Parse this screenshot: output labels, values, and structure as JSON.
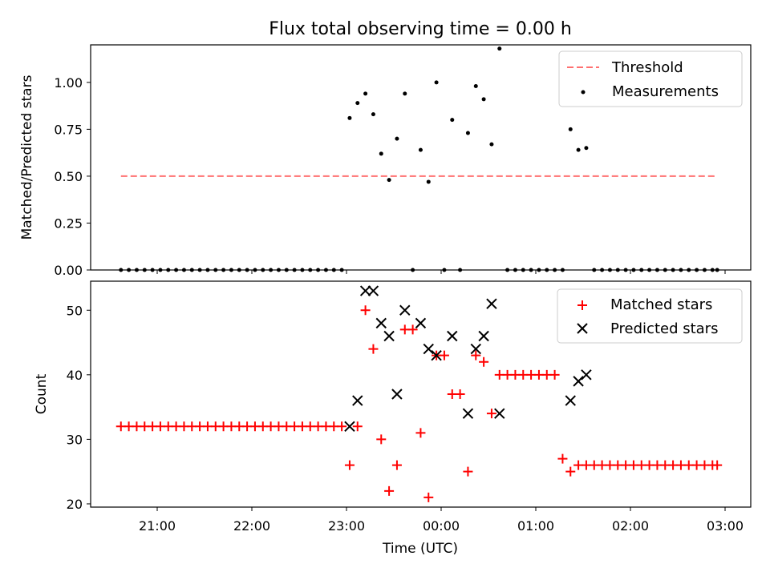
{
  "title": "Flux total observing time = 0.00 h",
  "chart_data": [
    {
      "type": "scatter",
      "ylabel": "Matched/Predicted stars",
      "ylim": [
        0,
        1.2
      ],
      "y_ticks": [
        0.0,
        0.25,
        0.5,
        0.75,
        1.0
      ],
      "y_tick_labels": [
        "0.00",
        "0.25",
        "0.50",
        "0.75",
        "1.00"
      ],
      "legend": {
        "position": "top-right",
        "entries": [
          "Threshold",
          "Measurements"
        ]
      },
      "threshold": {
        "name": "Threshold",
        "y": 0.5,
        "x_start": "20:37",
        "x_end": "02:55",
        "color": "#ff7070"
      },
      "series": [
        {
          "name": "Measurements",
          "color": "#000000",
          "x": [
            "20:37",
            "20:42",
            "20:47",
            "20:52",
            "20:57",
            "21:02",
            "21:07",
            "21:12",
            "21:17",
            "21:22",
            "21:27",
            "21:32",
            "21:37",
            "21:42",
            "21:47",
            "21:52",
            "21:57",
            "22:02",
            "22:07",
            "22:12",
            "22:17",
            "22:22",
            "22:27",
            "22:32",
            "22:37",
            "22:42",
            "22:47",
            "22:52",
            "22:57",
            "23:02",
            "23:07",
            "23:12",
            "23:17",
            "23:22",
            "23:27",
            "23:32",
            "23:37",
            "23:42",
            "23:47",
            "23:52",
            "23:57",
            "00:02",
            "00:07",
            "00:12",
            "00:17",
            "00:22",
            "00:27",
            "00:32",
            "00:37",
            "00:42",
            "00:47",
            "00:52",
            "00:57",
            "01:02",
            "01:07",
            "01:12",
            "01:17",
            "01:22",
            "01:27",
            "01:32",
            "01:37",
            "01:42",
            "01:47",
            "01:52",
            "01:57",
            "02:02",
            "02:07",
            "02:12",
            "02:17",
            "02:22",
            "02:27",
            "02:32",
            "02:37",
            "02:42",
            "02:47",
            "02:52",
            "02:55"
          ],
          "y": [
            0,
            0,
            0,
            0,
            0,
            0,
            0,
            0,
            0,
            0,
            0,
            0,
            0,
            0,
            0,
            0,
            0,
            0,
            0,
            0,
            0,
            0,
            0,
            0,
            0,
            0,
            0,
            0,
            0,
            0.81,
            0.89,
            0.94,
            0.83,
            0.62,
            0.48,
            0.7,
            0.94,
            0,
            0.64,
            0.47,
            1.0,
            0,
            0.8,
            0,
            0.73,
            0.98,
            0.91,
            0.67,
            1.18,
            0,
            0,
            0,
            0,
            0,
            0,
            0,
            0,
            0.75,
            0.64,
            0.65,
            0,
            0,
            0,
            0,
            0,
            0,
            0,
            0,
            0,
            0,
            0,
            0,
            0,
            0,
            0,
            0,
            0
          ]
        }
      ]
    },
    {
      "type": "scatter",
      "xlabel": "Time (UTC)",
      "ylabel": "Count",
      "ylim": [
        19.5,
        54.5
      ],
      "y_ticks": [
        20,
        30,
        40,
        50
      ],
      "x_tick_labels": [
        "21:00",
        "22:00",
        "23:00",
        "00:00",
        "01:00",
        "02:00",
        "03:00"
      ],
      "legend": {
        "position": "top-right",
        "entries": [
          "Matched stars",
          "Predicted stars"
        ]
      },
      "series": [
        {
          "name": "Matched stars",
          "marker": "plus",
          "color": "#ff0000",
          "x": [
            "20:37",
            "20:42",
            "20:47",
            "20:52",
            "20:57",
            "21:02",
            "21:07",
            "21:12",
            "21:17",
            "21:22",
            "21:27",
            "21:32",
            "21:37",
            "21:42",
            "21:47",
            "21:52",
            "21:57",
            "22:02",
            "22:07",
            "22:12",
            "22:17",
            "22:22",
            "22:27",
            "22:32",
            "22:37",
            "22:42",
            "22:47",
            "22:52",
            "22:57",
            "23:02",
            "23:07",
            "23:12",
            "23:17",
            "23:22",
            "23:27",
            "23:32",
            "23:37",
            "23:42",
            "23:47",
            "23:52",
            "23:57",
            "00:02",
            "00:07",
            "00:12",
            "00:17",
            "00:22",
            "00:27",
            "00:32",
            "00:37",
            "00:42",
            "00:47",
            "00:52",
            "00:57",
            "01:02",
            "01:07",
            "01:12",
            "01:17",
            "01:22",
            "01:27",
            "01:32",
            "01:37",
            "01:42",
            "01:47",
            "01:52",
            "01:57",
            "02:02",
            "02:07",
            "02:12",
            "02:17",
            "02:22",
            "02:27",
            "02:32",
            "02:37",
            "02:42",
            "02:47",
            "02:52",
            "02:55"
          ],
          "y": [
            32,
            32,
            32,
            32,
            32,
            32,
            32,
            32,
            32,
            32,
            32,
            32,
            32,
            32,
            32,
            32,
            32,
            32,
            32,
            32,
            32,
            32,
            32,
            32,
            32,
            32,
            32,
            32,
            32,
            26,
            32,
            50,
            44,
            30,
            22,
            26,
            47,
            47,
            31,
            21,
            43,
            43,
            37,
            37,
            25,
            43,
            42,
            34,
            40,
            40,
            40,
            40,
            40,
            40,
            40,
            40,
            27,
            25,
            26,
            26,
            26,
            26,
            26,
            26,
            26,
            26,
            26,
            26,
            26,
            26,
            26,
            26,
            26,
            26,
            26,
            26,
            26
          ]
        },
        {
          "name": "Predicted stars",
          "marker": "x",
          "color": "#000000",
          "x": [
            "23:02",
            "23:07",
            "23:12",
            "23:17",
            "23:22",
            "23:27",
            "23:32",
            "23:37",
            "23:47",
            "23:52",
            "23:57",
            "00:07",
            "00:17",
            "00:22",
            "00:27",
            "00:32",
            "00:37",
            "01:22",
            "01:27",
            "01:32"
          ],
          "y": [
            32,
            36,
            53,
            53,
            48,
            46,
            37,
            50,
            48,
            44,
            43,
            46,
            34,
            44,
            46,
            51,
            34,
            36,
            39,
            40
          ]
        }
      ]
    }
  ]
}
